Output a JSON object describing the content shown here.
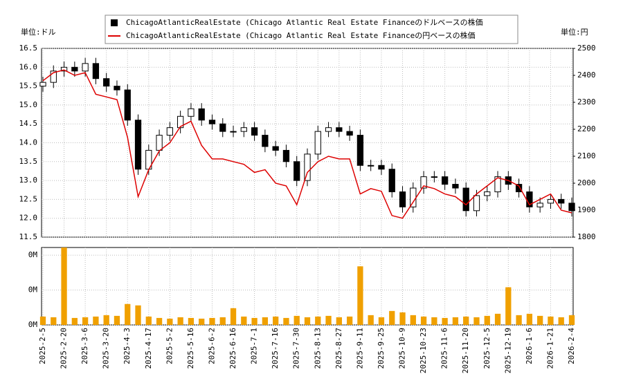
{
  "chart_data": {
    "type": "candlestick",
    "y_label": "単位:ドル",
    "y2_label": "単位:円",
    "categories": [
      "2025-2-5",
      null,
      "2025-2-20",
      null,
      "2025-3-6",
      null,
      "2025-3-20",
      null,
      "2025-4-3",
      null,
      "2025-4-17",
      null,
      "2025-5-2",
      null,
      "2025-5-16",
      null,
      "2025-6-2",
      null,
      "2025-6-16",
      null,
      "2025-7-1",
      null,
      "2025-7-16",
      null,
      "2025-7-30",
      null,
      "2025-8-13",
      null,
      "2025-8-27",
      null,
      "2025-9-11",
      null,
      "2025-9-25",
      null,
      "2025-10-9",
      null,
      "2025-10-23",
      null,
      "2025-11-6",
      null,
      "2025-11-20",
      null,
      "2025-12-5",
      null,
      "2025-12-19",
      null,
      "2026-1-6",
      null,
      "2026-1-21",
      null,
      "2026-2-4"
    ],
    "ylim": [
      11.5,
      16.5
    ],
    "yticks": [
      11.5,
      {
        "value": 12,
        "label": "12.0"
      },
      12.5,
      {
        "value": 13,
        "label": "13.0"
      },
      13.5,
      {
        "value": 14,
        "label": "14.0"
      },
      14.5,
      {
        "value": 15,
        "label": "15.0"
      },
      15.5,
      {
        "value": 16,
        "label": "16.0"
      },
      16.5
    ],
    "y2lim": [
      1800,
      2500
    ],
    "y2ticks": [
      1800,
      1900,
      2000,
      2100,
      2200,
      2300,
      2400,
      2500
    ],
    "grid": true,
    "series": [
      {
        "name": "ChicagoAtlanticRealEstate (Chicago Atlantic Real Estate Financeのドルベースの株価",
        "color": "#000000",
        "open": [
          15.5,
          15.6,
          15.9,
          16.0,
          15.9,
          16.1,
          15.7,
          15.5,
          15.4,
          14.6,
          13.3,
          13.8,
          14.2,
          14.4,
          14.7,
          14.9,
          14.6,
          14.5,
          14.3,
          14.3,
          14.4,
          14.2,
          13.9,
          13.8,
          13.5,
          13.0,
          13.7,
          14.3,
          14.4,
          14.3,
          14.2,
          13.4,
          13.4,
          13.3,
          12.7,
          12.3,
          12.8,
          13.1,
          13.1,
          12.9,
          12.8,
          12.2,
          12.6,
          12.7,
          13.1,
          12.9,
          12.7,
          12.3,
          12.4,
          12.5,
          12.4
        ],
        "high": [
          15.75,
          16.05,
          16.15,
          16.15,
          16.25,
          16.25,
          15.85,
          15.65,
          15.55,
          14.75,
          13.95,
          14.35,
          14.55,
          14.85,
          15.05,
          15.05,
          14.75,
          14.65,
          14.45,
          14.55,
          14.55,
          14.35,
          14.05,
          13.95,
          13.65,
          13.85,
          14.45,
          14.55,
          14.55,
          14.45,
          14.35,
          13.55,
          13.55,
          13.45,
          12.85,
          12.95,
          13.25,
          13.25,
          13.25,
          13.05,
          12.95,
          12.75,
          12.85,
          13.25,
          13.25,
          13.05,
          12.85,
          12.55,
          12.65,
          12.65,
          12.55
        ],
        "low": [
          15.35,
          15.45,
          15.75,
          15.75,
          15.75,
          15.55,
          15.35,
          15.25,
          14.45,
          13.15,
          13.15,
          13.65,
          14.05,
          14.25,
          14.55,
          14.45,
          14.35,
          14.15,
          14.15,
          14.15,
          14.05,
          13.75,
          13.65,
          13.35,
          12.85,
          12.85,
          13.55,
          14.15,
          14.15,
          14.05,
          13.25,
          13.25,
          13.15,
          12.55,
          12.15,
          12.15,
          12.65,
          12.95,
          12.75,
          12.65,
          12.05,
          12.05,
          12.45,
          12.55,
          12.75,
          12.55,
          12.15,
          12.15,
          12.25,
          12.25,
          12.05
        ],
        "close": [
          15.6,
          15.9,
          16.0,
          15.9,
          16.1,
          15.7,
          15.5,
          15.4,
          14.6,
          13.3,
          13.8,
          14.2,
          14.4,
          14.7,
          14.9,
          14.6,
          14.5,
          14.3,
          14.3,
          14.4,
          14.2,
          13.9,
          13.8,
          13.5,
          13.0,
          13.7,
          14.3,
          14.4,
          14.3,
          14.2,
          13.4,
          13.4,
          13.3,
          12.7,
          12.3,
          12.8,
          13.1,
          13.1,
          12.9,
          12.8,
          12.2,
          12.6,
          12.7,
          13.1,
          12.9,
          12.7,
          12.3,
          12.4,
          12.5,
          12.4,
          12.2
        ]
      },
      {
        "name": "ChicagoAtlanticRealEstate (Chicago Atlantic Real Estate Financeの円ベースの株価",
        "color": "#dd0000",
        "axis": "y2",
        "values": [
          2380,
          2410,
          2420,
          2400,
          2410,
          2330,
          2320,
          2310,
          2170,
          1950,
          2050,
          2120,
          2150,
          2210,
          2230,
          2140,
          2090,
          2090,
          2080,
          2070,
          2040,
          2050,
          2000,
          1990,
          1920,
          2040,
          2080,
          2100,
          2090,
          2090,
          1960,
          1980,
          1970,
          1880,
          1870,
          1930,
          1990,
          1980,
          1960,
          1950,
          1920,
          1960,
          1990,
          2020,
          2010,
          1990,
          1920,
          1940,
          1960,
          1900,
          1890
        ]
      }
    ],
    "volume": {
      "color": "#f0a000",
      "ylim": [
        0,
        555000
      ],
      "yticks": [
        {
          "value": 0,
          "label": "0M"
        },
        {
          "value": 250000,
          "label": "0M"
        },
        {
          "value": 500000,
          "label": "0M"
        }
      ],
      "values": [
        60000,
        55000,
        555000,
        50000,
        55000,
        60000,
        70000,
        65000,
        150000,
        140000,
        60000,
        50000,
        45000,
        55000,
        50000,
        45000,
        50000,
        55000,
        120000,
        60000,
        50000,
        55000,
        60000,
        50000,
        65000,
        55000,
        60000,
        65000,
        55000,
        60000,
        420000,
        70000,
        55000,
        100000,
        90000,
        70000,
        60000,
        55000,
        50000,
        55000,
        60000,
        55000,
        65000,
        80000,
        270000,
        70000,
        80000,
        65000,
        60000,
        55000,
        70000
      ]
    }
  }
}
